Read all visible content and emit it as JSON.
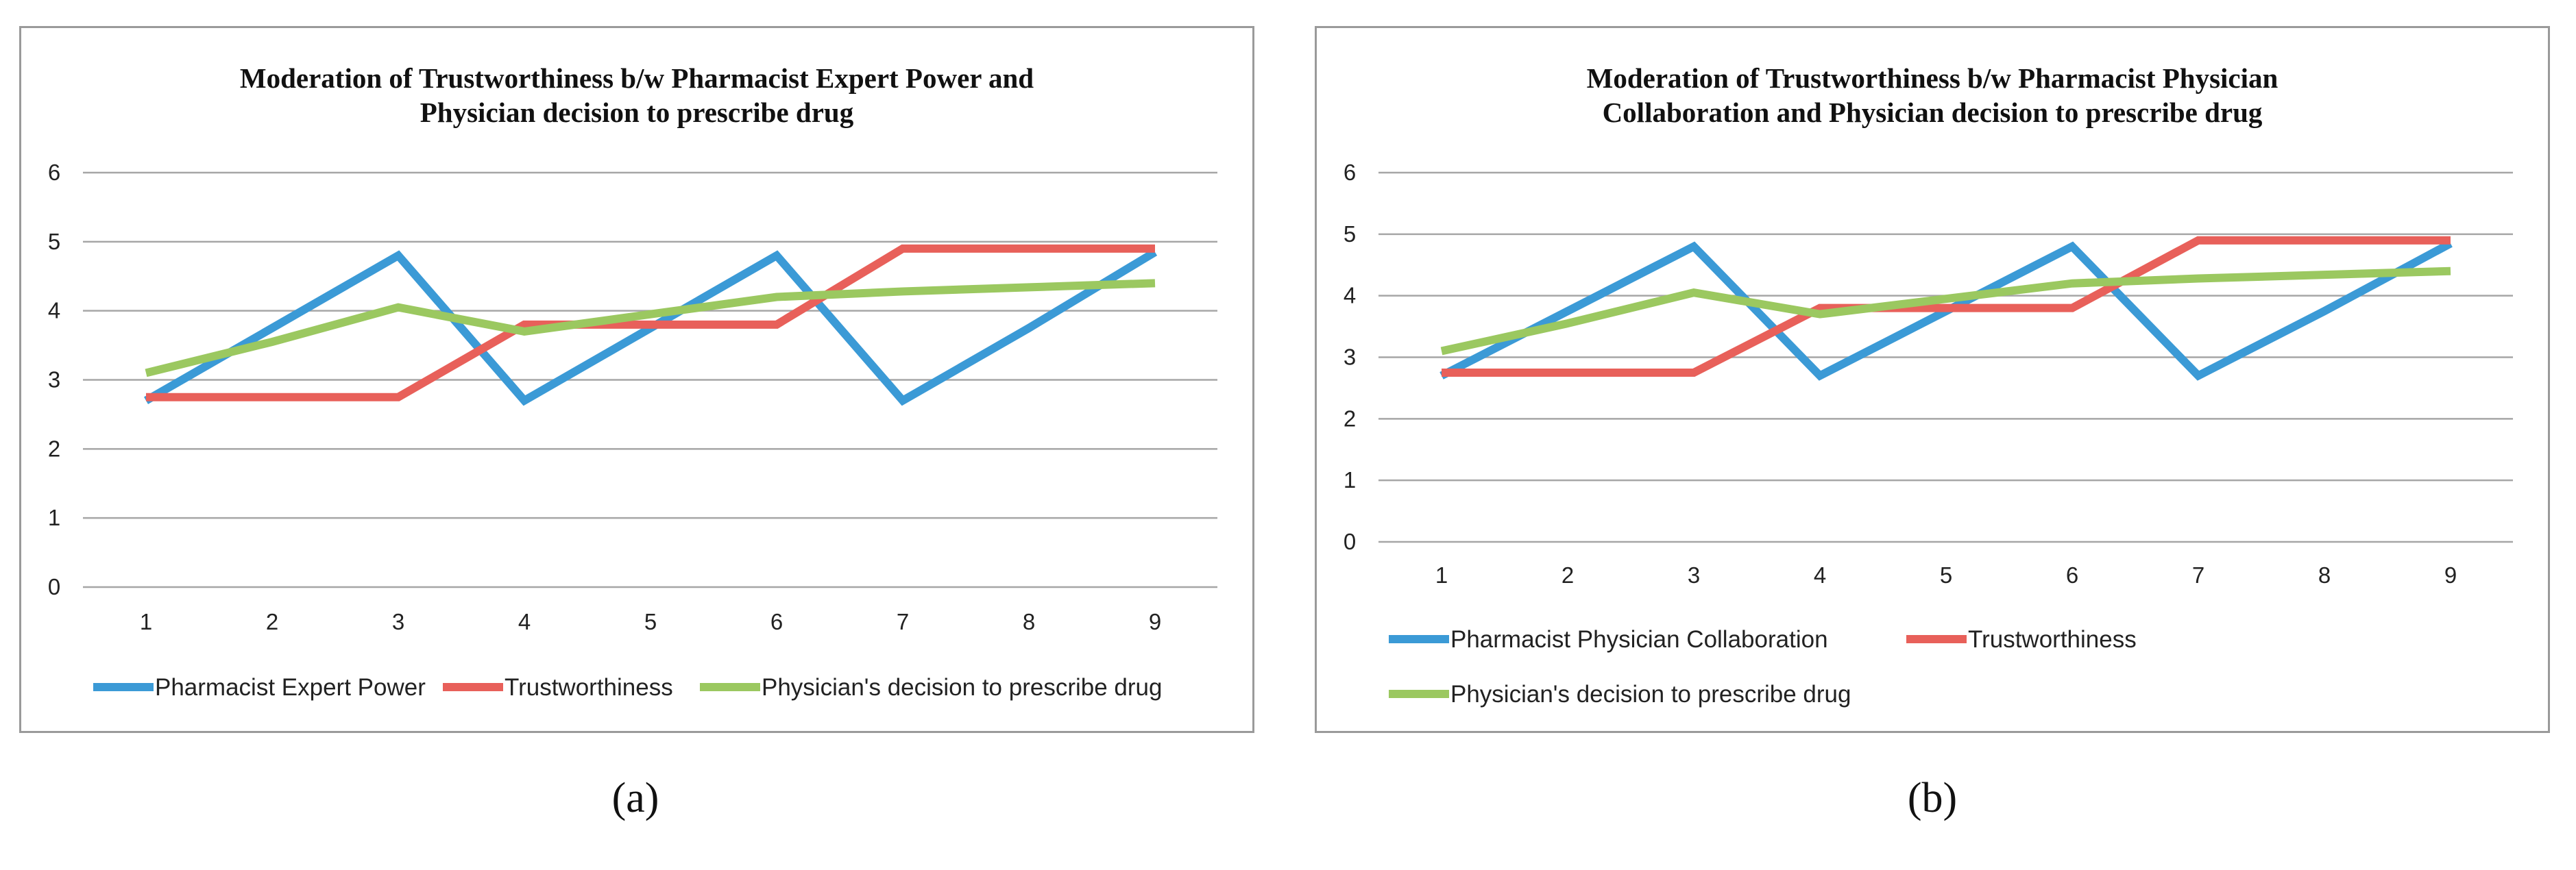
{
  "chart_data": [
    {
      "type": "line",
      "title_lines": [
        "Moderation of Trustworthiness b/w Pharmacist Expert Power and",
        "Physician decision to prescribe drug"
      ],
      "categories": [
        "1",
        "2",
        "3",
        "4",
        "5",
        "6",
        "7",
        "8",
        "9"
      ],
      "ylim": [
        0,
        6
      ],
      "yticks": [
        "0",
        "1",
        "2",
        "3",
        "4",
        "5",
        "6"
      ],
      "grid": true,
      "legend_position": "bottom",
      "series": [
        {
          "name": "Pharmacist Expert Power",
          "color": "#3b9ad6",
          "values": [
            2.7,
            3.75,
            4.8,
            2.7,
            3.75,
            4.8,
            2.7,
            3.75,
            4.85
          ]
        },
        {
          "name": "Trustworthiness",
          "color": "#e8605a",
          "values": [
            2.75,
            2.75,
            2.75,
            3.8,
            3.8,
            3.8,
            4.9,
            4.9,
            4.9
          ]
        },
        {
          "name": "Physician's decision to prescribe drug",
          "color": "#9bc860",
          "values": [
            3.1,
            3.55,
            4.05,
            3.7,
            3.95,
            4.2,
            4.28,
            4.34,
            4.4
          ]
        }
      ]
    },
    {
      "type": "line",
      "title_lines": [
        "Moderation of Trustworthiness b/w Pharmacist Physician",
        "Collaboration and Physician decision to prescribe drug"
      ],
      "categories": [
        "1",
        "2",
        "3",
        "4",
        "5",
        "6",
        "7",
        "8",
        "9"
      ],
      "ylim": [
        0,
        6
      ],
      "yticks": [
        "0",
        "1",
        "2",
        "3",
        "4",
        "5",
        "6"
      ],
      "grid": true,
      "legend_position": "bottom",
      "series": [
        {
          "name": "Pharmacist Physician Collaboration",
          "color": "#3b9ad6",
          "values": [
            2.7,
            3.75,
            4.8,
            2.7,
            3.75,
            4.8,
            2.7,
            3.75,
            4.85
          ]
        },
        {
          "name": "Trustworthiness",
          "color": "#e8605a",
          "values": [
            2.75,
            2.75,
            2.75,
            3.8,
            3.8,
            3.8,
            4.9,
            4.9,
            4.9
          ]
        },
        {
          "name": "Physician's decision to prescribe drug",
          "color": "#9bc860",
          "values": [
            3.1,
            3.55,
            4.05,
            3.7,
            3.95,
            4.2,
            4.28,
            4.34,
            4.4
          ]
        }
      ]
    }
  ],
  "captions": [
    "(a)",
    "(b)"
  ]
}
